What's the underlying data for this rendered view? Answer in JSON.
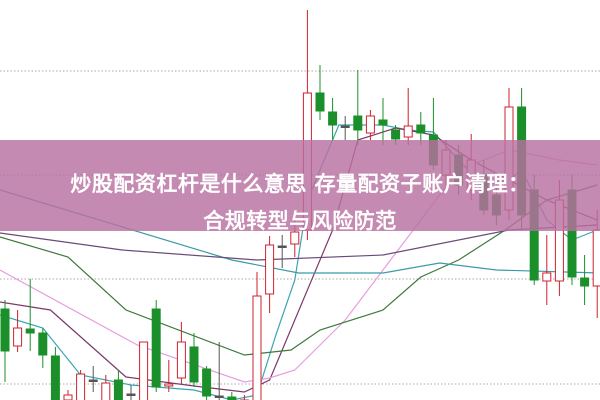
{
  "banner": {
    "title_line1": "炒股配资杠杆是什么意思 存量配资子账户清理：",
    "title_line2": "合规转型与风险防范",
    "background_color": "#c48aae"
  },
  "chart_data": {
    "type": "candlestick",
    "title": "",
    "xlabel": "",
    "ylabel": "",
    "grid": "horizontal dotted",
    "ylim": [
      0,
      400
    ],
    "colors": {
      "up": "#d0202e",
      "down": "#1a8f2a",
      "doji": "#555555"
    },
    "candles": [
      [
        91,
        49,
        100,
        18
      ],
      [
        54,
        72,
        90,
        48
      ],
      [
        71,
        67,
        121,
        49
      ],
      [
        67,
        45,
        72,
        32
      ],
      [
        44,
        -2,
        53,
        -2
      ],
      [
        0,
        5,
        10,
        -2
      ],
      [
        -2,
        26,
        30,
        -2
      ],
      [
        19,
        20,
        34,
        8
      ],
      [
        -2,
        17,
        25,
        -2
      ],
      [
        20,
        -2,
        30,
        -2
      ],
      [
        5,
        6,
        15,
        -2
      ],
      [
        -2,
        58,
        58,
        -2
      ],
      [
        91,
        13,
        100,
        8
      ],
      [
        14,
        16,
        40,
        8
      ],
      [
        22,
        58,
        78,
        16
      ],
      [
        53,
        18,
        67,
        13
      ],
      [
        31,
        4,
        34,
        0
      ],
      [
        3,
        4,
        58,
        0
      ],
      [
        3,
        0,
        8,
        -2
      ],
      [
        -2,
        0,
        5,
        -2
      ],
      [
        -2,
        104,
        128,
        -2
      ],
      [
        106,
        155,
        164,
        87
      ],
      [
        153,
        154,
        165,
        132
      ],
      [
        156,
        168,
        190,
        143
      ],
      [
        170,
        307,
        390,
        160
      ],
      [
        307,
        289,
        335,
        280
      ],
      [
        288,
        275,
        302,
        260
      ],
      [
        274,
        274,
        284,
        260
      ],
      [
        284,
        270,
        330,
        255
      ],
      [
        267,
        284,
        290,
        260
      ],
      [
        280,
        275,
        302,
        255
      ],
      [
        270,
        261,
        275,
        255
      ],
      [
        263,
        274,
        312,
        255
      ],
      [
        275,
        267,
        288,
        255
      ],
      [
        265,
        235,
        302,
        230
      ],
      [
        225,
        250,
        260,
        215
      ],
      [
        245,
        215,
        255,
        205
      ],
      [
        210,
        240,
        266,
        200
      ],
      [
        225,
        190,
        240,
        185
      ],
      [
        205,
        185,
        220,
        175
      ],
      [
        190,
        293,
        312,
        180
      ],
      [
        293,
        185,
        312,
        170
      ],
      [
        210,
        120,
        225,
        115
      ],
      [
        119,
        127,
        165,
        95
      ],
      [
        119,
        200,
        220,
        104
      ],
      [
        210,
        123,
        225,
        115
      ],
      [
        122,
        114,
        145,
        95
      ],
      [
        114,
        170,
        190,
        82
      ]
    ],
    "candle_fields": [
      "open",
      "close",
      "high",
      "low"
    ],
    "moving_averages": [
      {
        "color": "#3aa6b0",
        "points": [
          [
            -0.4,
            85
          ],
          [
            3,
            72
          ],
          [
            6,
            25
          ],
          [
            10,
            15
          ],
          [
            13,
            12
          ],
          [
            15,
            10
          ],
          [
            18,
            0
          ],
          [
            20,
            5
          ],
          [
            21.5,
            65
          ],
          [
            23,
            120
          ],
          [
            24,
            200
          ],
          [
            26.5,
            275
          ],
          [
            30,
            275
          ],
          [
            32,
            270
          ],
          [
            34,
            268
          ],
          [
            36,
            240
          ],
          [
            38,
            215
          ],
          [
            40,
            220
          ],
          [
            41,
            230
          ],
          [
            43,
            180
          ],
          [
            45,
            160
          ],
          [
            47,
            170
          ]
        ]
      },
      {
        "color": "#7b3a6c",
        "points": [
          [
            -0.4,
            98
          ],
          [
            3.6,
            90
          ],
          [
            9.6,
            23
          ],
          [
            15,
            14
          ],
          [
            19,
            8
          ],
          [
            21,
            20
          ],
          [
            23,
            80
          ],
          [
            26,
            170
          ],
          [
            28,
            260
          ],
          [
            31,
            272
          ],
          [
            34,
            265
          ],
          [
            37,
            240
          ],
          [
            40,
            220
          ],
          [
            43,
            200
          ],
          [
            47,
            180
          ]
        ]
      },
      {
        "color": "#e89de0",
        "points": [
          [
            -0.4,
            130
          ],
          [
            10.5,
            55
          ],
          [
            19,
            18
          ],
          [
            21,
            22
          ],
          [
            23,
            30
          ],
          [
            27,
            80
          ],
          [
            32.4,
            170
          ],
          [
            36,
            230
          ],
          [
            40,
            250
          ],
          [
            44,
            240
          ],
          [
            47,
            235
          ]
        ]
      },
      {
        "color": "#3d7a3d",
        "points": [
          [
            -0.4,
            163
          ],
          [
            5,
            143
          ],
          [
            9.6,
            90
          ],
          [
            19,
            45
          ],
          [
            22.7,
            50
          ],
          [
            25,
            70
          ],
          [
            30,
            90
          ],
          [
            33,
            123
          ],
          [
            36,
            140
          ],
          [
            39.7,
            170
          ],
          [
            43,
            200
          ],
          [
            47,
            215
          ]
        ]
      },
      {
        "color": "#3c9aa8",
        "points": [
          [
            -0.4,
            210
          ],
          [
            18,
            140
          ],
          [
            23.3,
            127
          ],
          [
            30,
            127
          ],
          [
            34.5,
            137
          ],
          [
            39,
            130
          ],
          [
            47.2,
            127
          ]
        ]
      },
      {
        "color": "#6a4a78",
        "points": [
          [
            -0.4,
            167
          ],
          [
            9.3,
            150
          ],
          [
            20,
            140
          ],
          [
            30,
            145
          ],
          [
            40,
            170
          ],
          [
            47,
            175
          ]
        ]
      }
    ],
    "gridlines": [
      16,
      121,
      225,
      329
    ]
  }
}
